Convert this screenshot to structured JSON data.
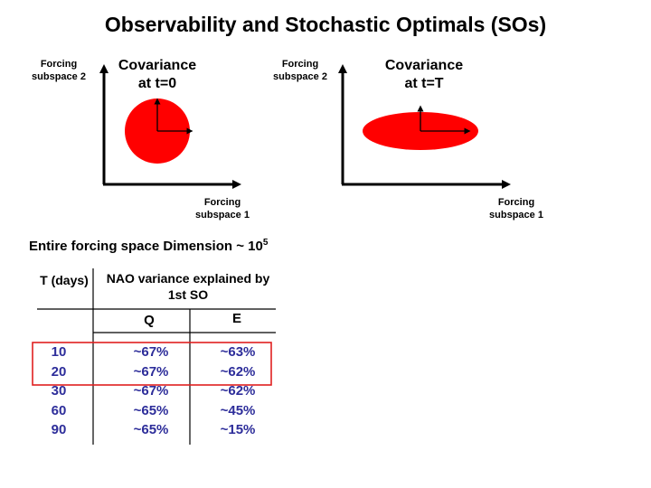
{
  "title": "Observability and Stochastic Optimals (SOs)",
  "diagram_left": {
    "yaxis_label": "Forcing subspace 2",
    "xaxis_label": "Forcing subspace 1",
    "cov_title_line1": "Covariance",
    "cov_title_line2": "at t=0",
    "ellipse_color": "#ff0000"
  },
  "diagram_right": {
    "yaxis_label": "Forcing subspace 2",
    "xaxis_label": "Forcing subspace 1",
    "cov_title_line1": "Covariance",
    "cov_title_line2": "at t=T",
    "ellipse_color": "#ff0000"
  },
  "subtitle": "Entire forcing space Dimension ~ 10",
  "subtitle_exponent": "5",
  "table": {
    "col_t_header": "T (days)",
    "col_group_header": "NAO variance explained by 1st SO",
    "col_q_header": "Q",
    "col_e_header": "E",
    "rows": [
      {
        "t": "10",
        "q": "~67%",
        "e": "~63%"
      },
      {
        "t": "20",
        "q": "~67%",
        "e": "~62%"
      },
      {
        "t": "30",
        "q": "~67%",
        "e": "~62%"
      },
      {
        "t": "60",
        "q": "~65%",
        "e": "~45%"
      },
      {
        "t": "90",
        "q": "~65%",
        "e": "~15%"
      }
    ],
    "highlight_color": "#e02020",
    "value_color": "#2d2d9a"
  }
}
